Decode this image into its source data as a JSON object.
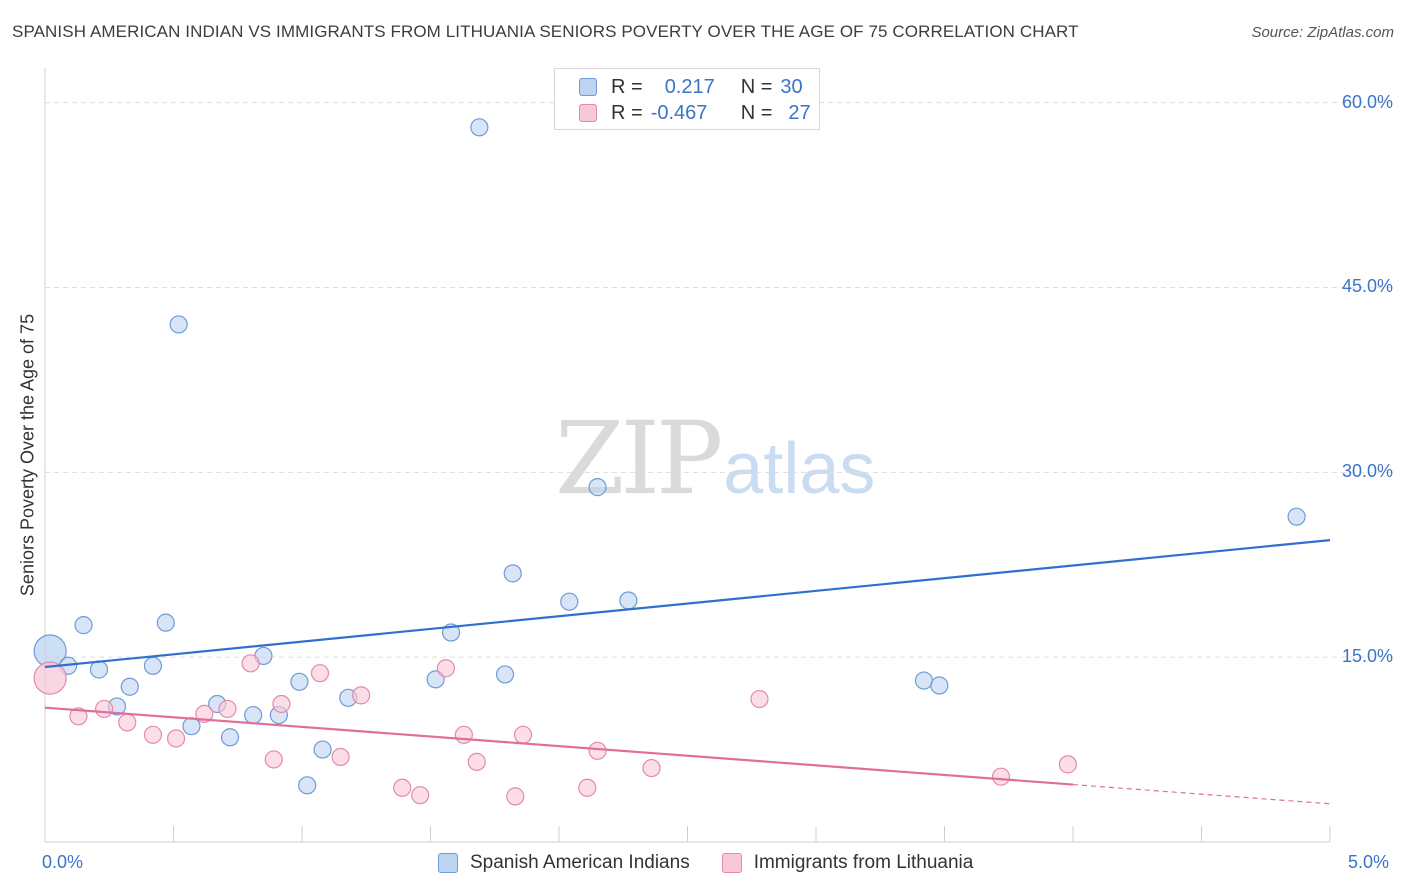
{
  "title": "SPANISH AMERICAN INDIAN VS IMMIGRANTS FROM LITHUANIA SENIORS POVERTY OVER THE AGE OF 75 CORRELATION CHART",
  "source": "Source: ZipAtlas.com",
  "watermark": {
    "zip": "ZIP",
    "atlas": "atlas"
  },
  "legend": {
    "r_label": "R =",
    "n_label": "N =",
    "rows": [
      {
        "r": "0.217",
        "n": "30"
      },
      {
        "r": "-0.467",
        "n": "27"
      }
    ]
  },
  "colors": {
    "blue_fill": "#bcd4f2",
    "blue_stroke": "#6f9bd8",
    "blue_line": "#2f6fcf",
    "pink_fill": "#f8c8d8",
    "pink_stroke": "#e58aa8",
    "pink_line": "#e06f97",
    "grid": "#dddddd",
    "tick_text": "#3a74c8"
  },
  "chart_data": {
    "type": "scatter",
    "title": "SPANISH AMERICAN INDIAN VS IMMIGRANTS FROM LITHUANIA SENIORS POVERTY OVER THE AGE OF 75 CORRELATION CHART",
    "xlabel": "",
    "ylabel": "Seniors Poverty Over the Age of 75",
    "xlim": [
      0,
      5.0
    ],
    "ylim": [
      0,
      62.0
    ],
    "x_tick_labels": {
      "min": "0.0%",
      "max": "5.0%"
    },
    "y_ticks": [
      {
        "value": 15,
        "label": "15.0%"
      },
      {
        "value": 30,
        "label": "30.0%"
      },
      {
        "value": 45,
        "label": "45.0%"
      },
      {
        "value": 60,
        "label": "60.0%"
      }
    ],
    "series": [
      {
        "name": "Spanish American Indians",
        "color_key": "blue",
        "r": 0.217,
        "n": 30,
        "trend": {
          "x0": 0.0,
          "y0": 14.2,
          "x1": 5.0,
          "y1": 24.5,
          "dashed_from": null
        },
        "points": [
          {
            "x": 0.02,
            "y": 15.5,
            "big": true
          },
          {
            "x": 0.09,
            "y": 14.3
          },
          {
            "x": 0.15,
            "y": 17.6
          },
          {
            "x": 0.21,
            "y": 14.0
          },
          {
            "x": 0.28,
            "y": 11.0
          },
          {
            "x": 0.33,
            "y": 12.6
          },
          {
            "x": 0.42,
            "y": 14.3
          },
          {
            "x": 0.47,
            "y": 17.8
          },
          {
            "x": 0.52,
            "y": 42.0
          },
          {
            "x": 0.57,
            "y": 9.4
          },
          {
            "x": 0.67,
            "y": 11.2
          },
          {
            "x": 0.72,
            "y": 8.5
          },
          {
            "x": 0.81,
            "y": 10.3
          },
          {
            "x": 0.85,
            "y": 15.1
          },
          {
            "x": 0.91,
            "y": 10.3
          },
          {
            "x": 0.99,
            "y": 13.0
          },
          {
            "x": 1.02,
            "y": 4.6
          },
          {
            "x": 1.08,
            "y": 7.5
          },
          {
            "x": 1.18,
            "y": 11.7
          },
          {
            "x": 1.52,
            "y": 13.2
          },
          {
            "x": 1.58,
            "y": 17.0
          },
          {
            "x": 1.69,
            "y": 58.0
          },
          {
            "x": 1.79,
            "y": 13.6
          },
          {
            "x": 1.82,
            "y": 21.8
          },
          {
            "x": 2.04,
            "y": 19.5
          },
          {
            "x": 2.15,
            "y": 28.8
          },
          {
            "x": 2.27,
            "y": 19.6
          },
          {
            "x": 3.42,
            "y": 13.1
          },
          {
            "x": 3.48,
            "y": 12.7
          },
          {
            "x": 4.87,
            "y": 26.4
          }
        ]
      },
      {
        "name": "Immigrants from Lithuania",
        "color_key": "pink",
        "r": -0.467,
        "n": 27,
        "trend": {
          "x0": 0.0,
          "y0": 10.9,
          "x1": 5.0,
          "y1": 3.1,
          "dashed_from": 4.0
        },
        "points": [
          {
            "x": 0.02,
            "y": 13.3,
            "big": true
          },
          {
            "x": 0.13,
            "y": 10.2
          },
          {
            "x": 0.23,
            "y": 10.8
          },
          {
            "x": 0.32,
            "y": 9.7
          },
          {
            "x": 0.42,
            "y": 8.7
          },
          {
            "x": 0.51,
            "y": 8.4
          },
          {
            "x": 0.62,
            "y": 10.4
          },
          {
            "x": 0.71,
            "y": 10.8
          },
          {
            "x": 0.8,
            "y": 14.5
          },
          {
            "x": 0.89,
            "y": 6.7
          },
          {
            "x": 0.92,
            "y": 11.2
          },
          {
            "x": 1.07,
            "y": 13.7
          },
          {
            "x": 1.15,
            "y": 6.9
          },
          {
            "x": 1.23,
            "y": 11.9
          },
          {
            "x": 1.39,
            "y": 4.4
          },
          {
            "x": 1.46,
            "y": 3.8
          },
          {
            "x": 1.56,
            "y": 14.1
          },
          {
            "x": 1.63,
            "y": 8.7
          },
          {
            "x": 1.68,
            "y": 6.5
          },
          {
            "x": 1.83,
            "y": 3.7
          },
          {
            "x": 1.86,
            "y": 8.7
          },
          {
            "x": 2.11,
            "y": 4.4
          },
          {
            "x": 2.15,
            "y": 7.4
          },
          {
            "x": 2.36,
            "y": 6.0
          },
          {
            "x": 2.78,
            "y": 11.6
          },
          {
            "x": 3.72,
            "y": 5.3
          },
          {
            "x": 3.98,
            "y": 6.3
          }
        ]
      }
    ]
  }
}
